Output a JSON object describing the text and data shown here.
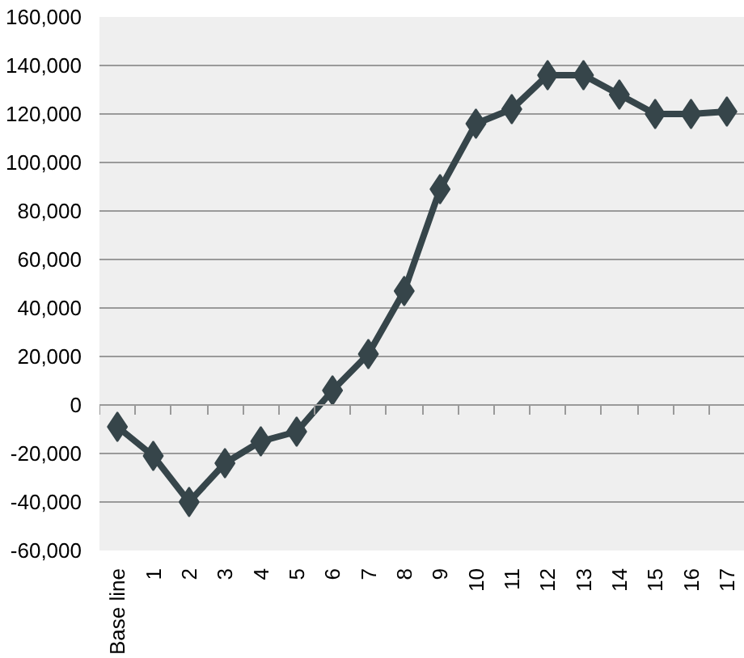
{
  "chart_data": {
    "type": "line",
    "categories": [
      "Base line",
      "1",
      "2",
      "3",
      "4",
      "5",
      "6",
      "7",
      "8",
      "9",
      "10",
      "11",
      "12",
      "13",
      "14",
      "15",
      "16",
      "17"
    ],
    "series": [
      {
        "color": "#36454a",
        "values": [
          -9000,
          -21000,
          -40000,
          -24000,
          -15000,
          -11000,
          6000,
          21000,
          47000,
          89000,
          116000,
          122000,
          136000,
          136000,
          128000,
          120000,
          120000,
          121000
        ]
      }
    ],
    "ylim": [
      -60000,
      160000
    ],
    "yticks": [
      {
        "value": -60000,
        "label": "-60,000"
      },
      {
        "value": -40000,
        "label": "-40,000"
      },
      {
        "value": -20000,
        "label": "-20,000"
      },
      0,
      {
        "value": 20000,
        "label": "20,000"
      },
      {
        "value": 40000,
        "label": "40,000"
      },
      {
        "value": 60000,
        "label": "60,000"
      },
      {
        "value": 80000,
        "label": "80,000"
      },
      {
        "value": 100000,
        "label": "100,000"
      },
      {
        "value": 120000,
        "label": "120,000"
      },
      {
        "value": 140000,
        "label": "140,000"
      },
      {
        "value": 160000,
        "label": "160,000"
      }
    ],
    "grid": "y",
    "marker": "diamond",
    "line_style": "solid"
  }
}
